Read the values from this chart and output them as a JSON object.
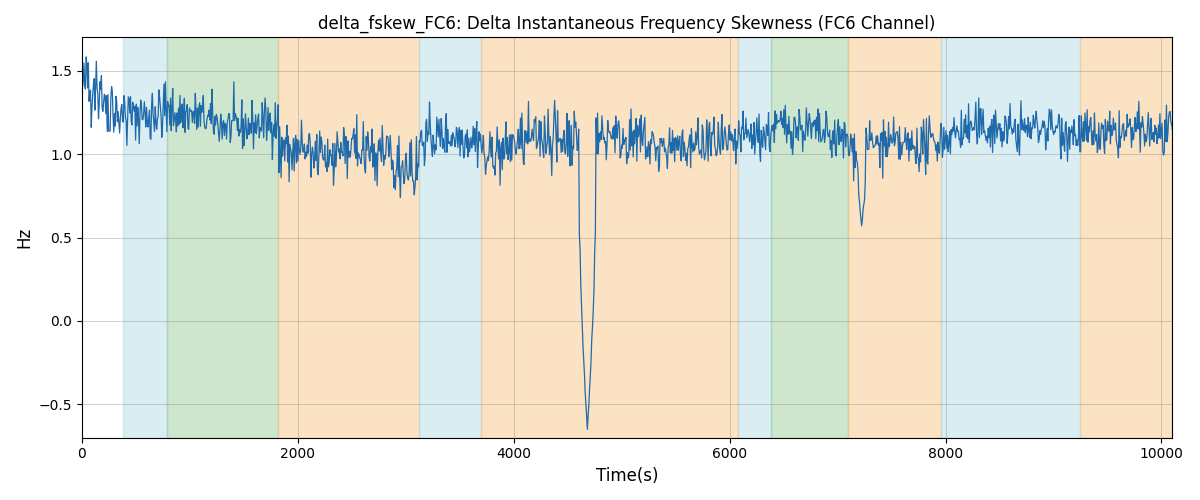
{
  "title": "delta_fskew_FC6: Delta Instantaneous Frequency Skewness (FC6 Channel)",
  "xlabel": "Time(s)",
  "ylabel": "Hz",
  "xlim": [
    0,
    10100
  ],
  "ylim": [
    -0.7,
    1.7
  ],
  "yticks": [
    -0.5,
    0.0,
    0.5,
    1.0,
    1.5
  ],
  "xticks": [
    0,
    2000,
    4000,
    6000,
    8000,
    10000
  ],
  "line_color": "#1f6aab",
  "line_width": 0.9,
  "figsize": [
    12.0,
    5.0
  ],
  "dpi": 100,
  "bg_regions": [
    {
      "xmin": 380,
      "xmax": 790,
      "color": "#add8e6",
      "alpha": 0.45
    },
    {
      "xmin": 790,
      "xmax": 1820,
      "color": "#90c990",
      "alpha": 0.45
    },
    {
      "xmin": 1820,
      "xmax": 3120,
      "color": "#f4c07a",
      "alpha": 0.45
    },
    {
      "xmin": 3120,
      "xmax": 3700,
      "color": "#add8e6",
      "alpha": 0.45
    },
    {
      "xmin": 3700,
      "xmax": 6080,
      "color": "#f4c07a",
      "alpha": 0.45
    },
    {
      "xmin": 6080,
      "xmax": 6380,
      "color": "#add8e6",
      "alpha": 0.45
    },
    {
      "xmin": 6380,
      "xmax": 7100,
      "color": "#90c990",
      "alpha": 0.45
    },
    {
      "xmin": 7100,
      "xmax": 7960,
      "color": "#f4c07a",
      "alpha": 0.45
    },
    {
      "xmin": 7960,
      "xmax": 9250,
      "color": "#add8e6",
      "alpha": 0.45
    },
    {
      "xmin": 9250,
      "xmax": 10200,
      "color": "#f4c07a",
      "alpha": 0.45
    }
  ],
  "seed": 42,
  "n_points": 1500,
  "base_level": 1.1,
  "noise_scale": 0.07,
  "spike_time": 4680,
  "spike_value": -0.65,
  "spike2_time": 7220,
  "spike2_value": 0.57
}
